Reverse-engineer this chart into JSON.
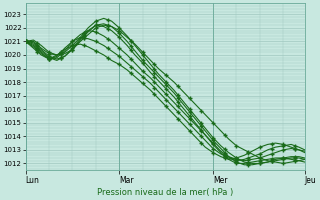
{
  "xlabel": "Pression niveau de la mer( hPa )",
  "bg_color": "#c8e8e0",
  "grid_color": "#a0c8c0",
  "line_color": "#1a6b1a",
  "marker_color": "#1a6b1a",
  "ylim": [
    1011.5,
    1023.8
  ],
  "yticks": [
    1012,
    1013,
    1014,
    1015,
    1016,
    1017,
    1018,
    1019,
    1020,
    1021,
    1022,
    1023
  ],
  "xtick_labels": [
    "Lun",
    "Mar",
    "Mer",
    "Jeu"
  ],
  "xtick_positions": [
    0,
    48,
    96,
    143
  ],
  "total_steps": 143,
  "lines": [
    {
      "pts": [
        [
          0,
          1021.0
        ],
        [
          4,
          1021.0
        ],
        [
          8,
          1020.5
        ],
        [
          12,
          1020.1
        ],
        [
          16,
          1020.0
        ],
        [
          20,
          1020.1
        ],
        [
          24,
          1020.4
        ],
        [
          28,
          1021.0
        ],
        [
          32,
          1021.5
        ],
        [
          36,
          1022.0
        ],
        [
          40,
          1022.2
        ],
        [
          44,
          1022.1
        ],
        [
          48,
          1021.8
        ],
        [
          52,
          1021.3
        ],
        [
          56,
          1020.8
        ],
        [
          60,
          1020.2
        ],
        [
          64,
          1019.6
        ],
        [
          68,
          1019.0
        ],
        [
          72,
          1018.5
        ],
        [
          76,
          1018.0
        ],
        [
          80,
          1017.4
        ],
        [
          84,
          1016.8
        ],
        [
          88,
          1016.2
        ],
        [
          92,
          1015.6
        ],
        [
          96,
          1015.0
        ],
        [
          100,
          1014.4
        ],
        [
          104,
          1013.8
        ],
        [
          108,
          1013.3
        ],
        [
          112,
          1013.0
        ],
        [
          116,
          1012.7
        ],
        [
          120,
          1012.4
        ],
        [
          124,
          1012.2
        ],
        [
          128,
          1012.1
        ],
        [
          132,
          1012.0
        ],
        [
          136,
          1012.1
        ],
        [
          140,
          1012.2
        ],
        [
          143,
          1012.3
        ]
      ]
    },
    {
      "pts": [
        [
          0,
          1021.0
        ],
        [
          4,
          1021.1
        ],
        [
          8,
          1020.7
        ],
        [
          12,
          1020.2
        ],
        [
          16,
          1020.0
        ],
        [
          20,
          1020.2
        ],
        [
          24,
          1020.7
        ],
        [
          28,
          1021.3
        ],
        [
          32,
          1022.0
        ],
        [
          36,
          1022.5
        ],
        [
          40,
          1022.7
        ],
        [
          44,
          1022.5
        ],
        [
          48,
          1022.0
        ],
        [
          52,
          1021.4
        ],
        [
          56,
          1020.7
        ],
        [
          60,
          1020.0
        ],
        [
          64,
          1019.3
        ],
        [
          68,
          1018.6
        ],
        [
          72,
          1018.0
        ],
        [
          76,
          1017.4
        ],
        [
          80,
          1016.7
        ],
        [
          84,
          1016.0
        ],
        [
          88,
          1015.3
        ],
        [
          92,
          1014.6
        ],
        [
          96,
          1013.9
        ],
        [
          100,
          1013.3
        ],
        [
          104,
          1012.8
        ],
        [
          108,
          1012.4
        ],
        [
          112,
          1012.1
        ],
        [
          116,
          1012.0
        ],
        [
          120,
          1012.0
        ],
        [
          124,
          1012.1
        ],
        [
          128,
          1012.2
        ],
        [
          132,
          1012.3
        ],
        [
          136,
          1012.4
        ],
        [
          140,
          1012.4
        ],
        [
          143,
          1012.3
        ]
      ]
    },
    {
      "pts": [
        [
          0,
          1021.0
        ],
        [
          4,
          1020.9
        ],
        [
          8,
          1020.4
        ],
        [
          12,
          1019.9
        ],
        [
          16,
          1019.7
        ],
        [
          20,
          1019.9
        ],
        [
          24,
          1020.4
        ],
        [
          28,
          1021.1
        ],
        [
          32,
          1021.7
        ],
        [
          36,
          1022.2
        ],
        [
          40,
          1022.3
        ],
        [
          44,
          1022.1
        ],
        [
          48,
          1021.6
        ],
        [
          52,
          1021.0
        ],
        [
          56,
          1020.3
        ],
        [
          60,
          1019.6
        ],
        [
          64,
          1019.0
        ],
        [
          68,
          1018.4
        ],
        [
          72,
          1017.8
        ],
        [
          76,
          1017.2
        ],
        [
          80,
          1016.5
        ],
        [
          84,
          1015.8
        ],
        [
          88,
          1015.1
        ],
        [
          92,
          1014.4
        ],
        [
          96,
          1013.7
        ],
        [
          100,
          1013.1
        ],
        [
          104,
          1012.5
        ],
        [
          108,
          1012.1
        ],
        [
          112,
          1011.9
        ],
        [
          116,
          1011.9
        ],
        [
          120,
          1012.0
        ],
        [
          124,
          1012.1
        ],
        [
          128,
          1012.3
        ],
        [
          132,
          1012.4
        ],
        [
          136,
          1012.5
        ],
        [
          140,
          1012.5
        ],
        [
          143,
          1012.4
        ]
      ]
    },
    {
      "pts": [
        [
          0,
          1021.0
        ],
        [
          4,
          1020.8
        ],
        [
          8,
          1020.3
        ],
        [
          12,
          1019.8
        ],
        [
          16,
          1019.6
        ],
        [
          20,
          1019.9
        ],
        [
          24,
          1020.5
        ],
        [
          28,
          1021.2
        ],
        [
          32,
          1021.8
        ],
        [
          36,
          1022.2
        ],
        [
          40,
          1022.1
        ],
        [
          44,
          1021.8
        ],
        [
          48,
          1021.3
        ],
        [
          52,
          1020.7
        ],
        [
          56,
          1020.0
        ],
        [
          60,
          1019.4
        ],
        [
          64,
          1018.7
        ],
        [
          68,
          1018.1
        ],
        [
          72,
          1017.5
        ],
        [
          76,
          1016.9
        ],
        [
          80,
          1016.2
        ],
        [
          84,
          1015.5
        ],
        [
          88,
          1014.8
        ],
        [
          92,
          1014.1
        ],
        [
          96,
          1013.4
        ],
        [
          100,
          1012.8
        ],
        [
          104,
          1012.3
        ],
        [
          108,
          1012.0
        ],
        [
          112,
          1012.0
        ],
        [
          116,
          1012.1
        ],
        [
          120,
          1012.2
        ],
        [
          124,
          1012.3
        ],
        [
          128,
          1012.4
        ],
        [
          132,
          1012.4
        ],
        [
          136,
          1012.3
        ],
        [
          140,
          1012.2
        ],
        [
          143,
          1012.1
        ]
      ]
    },
    {
      "pts": [
        [
          0,
          1021.0
        ],
        [
          4,
          1020.7
        ],
        [
          8,
          1020.2
        ],
        [
          12,
          1019.7
        ],
        [
          16,
          1019.8
        ],
        [
          20,
          1020.3
        ],
        [
          24,
          1021.0
        ],
        [
          28,
          1021.5
        ],
        [
          32,
          1021.8
        ],
        [
          36,
          1021.7
        ],
        [
          40,
          1021.4
        ],
        [
          44,
          1021.0
        ],
        [
          48,
          1020.5
        ],
        [
          52,
          1020.0
        ],
        [
          56,
          1019.4
        ],
        [
          60,
          1018.8
        ],
        [
          64,
          1018.3
        ],
        [
          68,
          1017.7
        ],
        [
          72,
          1017.1
        ],
        [
          76,
          1016.5
        ],
        [
          80,
          1015.9
        ],
        [
          84,
          1015.3
        ],
        [
          88,
          1014.7
        ],
        [
          92,
          1014.1
        ],
        [
          96,
          1013.5
        ],
        [
          100,
          1012.9
        ],
        [
          104,
          1012.5
        ],
        [
          108,
          1012.3
        ],
        [
          112,
          1012.2
        ],
        [
          116,
          1012.3
        ],
        [
          120,
          1012.4
        ],
        [
          124,
          1012.6
        ],
        [
          128,
          1012.8
        ],
        [
          132,
          1013.0
        ],
        [
          136,
          1013.1
        ],
        [
          140,
          1013.0
        ],
        [
          143,
          1012.9
        ]
      ]
    },
    {
      "pts": [
        [
          0,
          1021.0
        ],
        [
          4,
          1020.6
        ],
        [
          8,
          1020.1
        ],
        [
          12,
          1019.7
        ],
        [
          16,
          1019.9
        ],
        [
          20,
          1020.5
        ],
        [
          24,
          1021.0
        ],
        [
          28,
          1021.3
        ],
        [
          32,
          1021.2
        ],
        [
          36,
          1021.0
        ],
        [
          40,
          1020.7
        ],
        [
          44,
          1020.3
        ],
        [
          48,
          1019.9
        ],
        [
          52,
          1019.4
        ],
        [
          56,
          1018.9
        ],
        [
          60,
          1018.4
        ],
        [
          64,
          1017.9
        ],
        [
          68,
          1017.3
        ],
        [
          72,
          1016.7
        ],
        [
          76,
          1016.1
        ],
        [
          80,
          1015.5
        ],
        [
          84,
          1014.9
        ],
        [
          88,
          1014.3
        ],
        [
          92,
          1013.7
        ],
        [
          96,
          1013.1
        ],
        [
          100,
          1012.7
        ],
        [
          104,
          1012.4
        ],
        [
          108,
          1012.2
        ],
        [
          112,
          1012.3
        ],
        [
          116,
          1012.5
        ],
        [
          120,
          1012.7
        ],
        [
          124,
          1013.0
        ],
        [
          128,
          1013.2
        ],
        [
          132,
          1013.3
        ],
        [
          136,
          1013.4
        ],
        [
          140,
          1013.2
        ],
        [
          143,
          1013.0
        ]
      ]
    },
    {
      "pts": [
        [
          0,
          1021.0
        ],
        [
          4,
          1020.5
        ],
        [
          8,
          1020.0
        ],
        [
          12,
          1019.7
        ],
        [
          16,
          1020.0
        ],
        [
          20,
          1020.4
        ],
        [
          24,
          1020.7
        ],
        [
          28,
          1020.8
        ],
        [
          32,
          1020.6
        ],
        [
          36,
          1020.3
        ],
        [
          40,
          1020.0
        ],
        [
          44,
          1019.6
        ],
        [
          48,
          1019.3
        ],
        [
          52,
          1018.9
        ],
        [
          56,
          1018.4
        ],
        [
          60,
          1017.9
        ],
        [
          64,
          1017.4
        ],
        [
          68,
          1016.8
        ],
        [
          72,
          1016.2
        ],
        [
          76,
          1015.6
        ],
        [
          80,
          1015.0
        ],
        [
          84,
          1014.4
        ],
        [
          88,
          1013.8
        ],
        [
          92,
          1013.2
        ],
        [
          96,
          1012.8
        ],
        [
          100,
          1012.5
        ],
        [
          104,
          1012.3
        ],
        [
          108,
          1012.4
        ],
        [
          112,
          1012.6
        ],
        [
          116,
          1012.9
        ],
        [
          120,
          1013.2
        ],
        [
          124,
          1013.4
        ],
        [
          128,
          1013.5
        ],
        [
          132,
          1013.4
        ],
        [
          136,
          1013.2
        ],
        [
          140,
          1013.0
        ],
        [
          143,
          1012.8
        ]
      ]
    }
  ]
}
